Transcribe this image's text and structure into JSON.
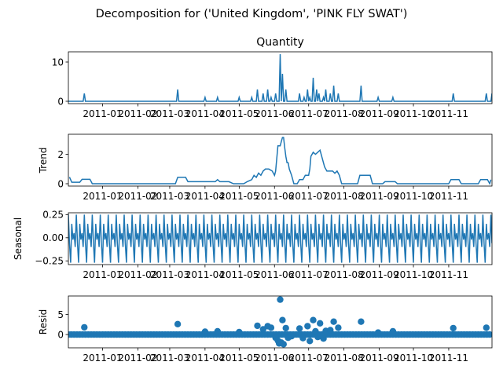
{
  "figure": {
    "suptitle": "Decomposition for ('United Kingdom', 'PINK FLY SWAT')",
    "date_ticks": [
      "2011-01",
      "2011-02",
      "2011-03",
      "2011-04",
      "2011-05",
      "2011-06",
      "2011-07",
      "2011-08",
      "2011-09",
      "2011-10",
      "2011-11"
    ]
  },
  "colors": {
    "series": "#1f77b4",
    "axes": "#000000"
  },
  "chart_data": [
    {
      "type": "line",
      "title": "Quantity",
      "ylabel": "",
      "xlim": [
        "2010-12-02",
        "2011-12-09"
      ],
      "ylim": [
        -0.6,
        12.6
      ],
      "yticks": [
        0,
        10
      ],
      "x_ticks": [
        "2011-01",
        "2011-02",
        "2011-03",
        "2011-04",
        "2011-05",
        "2011-06",
        "2011-07",
        "2011-08",
        "2011-09",
        "2011-10",
        "2011-11"
      ],
      "baseline": 0,
      "points": [
        [
          "2010-12-16",
          2
        ],
        [
          "2011-03-08",
          3
        ],
        [
          "2011-04-01",
          1
        ],
        [
          "2011-04-12",
          1
        ],
        [
          "2011-05-01",
          1
        ],
        [
          "2011-05-12",
          1
        ],
        [
          "2011-05-17",
          3
        ],
        [
          "2011-05-22",
          2
        ],
        [
          "2011-05-26",
          3
        ],
        [
          "2011-05-29",
          1
        ],
        [
          "2011-06-02",
          2
        ],
        [
          "2011-06-06",
          12
        ],
        [
          "2011-06-08",
          7
        ],
        [
          "2011-06-11",
          3
        ],
        [
          "2011-06-23",
          2
        ],
        [
          "2011-06-27",
          1
        ],
        [
          "2011-06-30",
          3
        ],
        [
          "2011-07-02",
          1
        ],
        [
          "2011-07-05",
          6
        ],
        [
          "2011-07-08",
          3
        ],
        [
          "2011-07-10",
          2
        ],
        [
          "2011-07-14",
          1
        ],
        [
          "2011-07-16",
          3
        ],
        [
          "2011-07-20",
          2
        ],
        [
          "2011-07-23",
          4
        ],
        [
          "2011-07-27",
          2
        ],
        [
          "2011-08-16",
          4
        ],
        [
          "2011-08-31",
          1
        ],
        [
          "2011-09-13",
          1
        ],
        [
          "2011-11-05",
          2
        ],
        [
          "2011-12-04",
          2
        ],
        [
          "2011-12-09",
          2
        ]
      ]
    },
    {
      "type": "line",
      "title": "",
      "ylabel": "Trend",
      "xlim": [
        "2010-12-02",
        "2011-12-09"
      ],
      "ylim": [
        -0.16,
        3.36
      ],
      "yticks": [
        0,
        2
      ],
      "x_ticks": [
        "2011-01",
        "2011-02",
        "2011-03",
        "2011-04",
        "2011-05",
        "2011-06",
        "2011-07",
        "2011-08",
        "2011-09",
        "2011-10",
        "2011-11"
      ],
      "points": [
        [
          "2010-12-03",
          0.45
        ],
        [
          "2010-12-05",
          0.1
        ],
        [
          "2010-12-12",
          0.1
        ],
        [
          "2010-12-14",
          0.3
        ],
        [
          "2010-12-21",
          0.3
        ],
        [
          "2010-12-23",
          0.0
        ],
        [
          "2011-03-06",
          0.0
        ],
        [
          "2011-03-08",
          0.43
        ],
        [
          "2011-03-15",
          0.43
        ],
        [
          "2011-03-17",
          0.14
        ],
        [
          "2011-03-31",
          0.14
        ],
        [
          "2011-04-02",
          0.14
        ],
        [
          "2011-04-10",
          0.14
        ],
        [
          "2011-04-12",
          0.28
        ],
        [
          "2011-04-14",
          0.14
        ],
        [
          "2011-04-22",
          0.14
        ],
        [
          "2011-04-26",
          0.0
        ],
        [
          "2011-05-05",
          0.0
        ],
        [
          "2011-05-08",
          0.14
        ],
        [
          "2011-05-12",
          0.28
        ],
        [
          "2011-05-14",
          0.57
        ],
        [
          "2011-05-16",
          0.43
        ],
        [
          "2011-05-18",
          0.72
        ],
        [
          "2011-05-20",
          0.57
        ],
        [
          "2011-05-22",
          0.86
        ],
        [
          "2011-05-24",
          1.0
        ],
        [
          "2011-05-27",
          1.0
        ],
        [
          "2011-05-30",
          0.86
        ],
        [
          "2011-06-01",
          0.57
        ],
        [
          "2011-06-02",
          0.86
        ],
        [
          "2011-06-04",
          2.57
        ],
        [
          "2011-06-06",
          2.57
        ],
        [
          "2011-06-07",
          2.86
        ],
        [
          "2011-06-08",
          3.14
        ],
        [
          "2011-06-09",
          3.14
        ],
        [
          "2011-06-10",
          2.43
        ],
        [
          "2011-06-11",
          1.86
        ],
        [
          "2011-06-12",
          1.43
        ],
        [
          "2011-06-13",
          1.43
        ],
        [
          "2011-06-14",
          1.0
        ],
        [
          "2011-06-16",
          0.57
        ],
        [
          "2011-06-18",
          0.0
        ],
        [
          "2011-06-21",
          0.0
        ],
        [
          "2011-06-23",
          0.28
        ],
        [
          "2011-06-26",
          0.28
        ],
        [
          "2011-06-28",
          0.57
        ],
        [
          "2011-07-01",
          0.57
        ],
        [
          "2011-07-02",
          1.0
        ],
        [
          "2011-07-03",
          1.86
        ],
        [
          "2011-07-05",
          2.14
        ],
        [
          "2011-07-07",
          2.0
        ],
        [
          "2011-07-09",
          2.14
        ],
        [
          "2011-07-11",
          2.28
        ],
        [
          "2011-07-13",
          1.71
        ],
        [
          "2011-07-15",
          1.14
        ],
        [
          "2011-07-17",
          0.86
        ],
        [
          "2011-07-19",
          0.86
        ],
        [
          "2011-07-22",
          0.86
        ],
        [
          "2011-07-24",
          0.71
        ],
        [
          "2011-07-26",
          0.86
        ],
        [
          "2011-07-28",
          0.57
        ],
        [
          "2011-07-30",
          0.0
        ],
        [
          "2011-08-13",
          0.0
        ],
        [
          "2011-08-15",
          0.57
        ],
        [
          "2011-08-24",
          0.57
        ],
        [
          "2011-08-26",
          0.0
        ],
        [
          "2011-09-04",
          0.0
        ],
        [
          "2011-09-06",
          0.14
        ],
        [
          "2011-09-15",
          0.14
        ],
        [
          "2011-09-17",
          0.0
        ],
        [
          "2011-11-01",
          0.0
        ],
        [
          "2011-11-03",
          0.28
        ],
        [
          "2011-11-10",
          0.28
        ],
        [
          "2011-11-12",
          0.0
        ],
        [
          "2011-11-27",
          0.0
        ],
        [
          "2011-11-29",
          0.28
        ],
        [
          "2011-12-05",
          0.28
        ],
        [
          "2011-12-07",
          0.0
        ],
        [
          "2011-12-08",
          0.28
        ]
      ]
    },
    {
      "type": "line",
      "title": "",
      "ylabel": "Seasonal",
      "xlim": [
        "2010-12-02",
        "2011-12-09"
      ],
      "ylim": [
        -0.29,
        0.27
      ],
      "yticks": [
        -0.25,
        0.0,
        0.25
      ],
      "ytick_labels": [
        "−0.25",
        "0.00",
        "0.25"
      ],
      "x_ticks": [
        "2011-01",
        "2011-02",
        "2011-03",
        "2011-04",
        "2011-05",
        "2011-06",
        "2011-07",
        "2011-08",
        "2011-09",
        "2011-10",
        "2011-11"
      ],
      "period_days": 7,
      "start": "2010-12-02",
      "end": "2011-12-09",
      "pattern": [
        0.25,
        -0.06,
        -0.27,
        0.15,
        -0.02,
        0.05,
        -0.1
      ]
    },
    {
      "type": "scatter",
      "title": "",
      "ylabel": "Resid",
      "xlim": [
        "2010-12-02",
        "2011-12-09"
      ],
      "ylim": [
        -3.3,
        9.6
      ],
      "yticks": [
        0,
        5
      ],
      "x_ticks": [
        "2011-01",
        "2011-02",
        "2011-03",
        "2011-04",
        "2011-05",
        "2011-06",
        "2011-07",
        "2011-08",
        "2011-09",
        "2011-10",
        "2011-11"
      ],
      "sampling_days": 2.5,
      "default_value": 0.0,
      "zero_line": true,
      "points": [
        [
          "2010-12-16",
          1.8
        ],
        [
          "2011-03-08",
          2.6
        ],
        [
          "2011-04-01",
          0.7
        ],
        [
          "2011-04-12",
          0.8
        ],
        [
          "2011-05-01",
          0.6
        ],
        [
          "2011-05-17",
          2.2
        ],
        [
          "2011-05-22",
          1.3
        ],
        [
          "2011-05-26",
          2.1
        ],
        [
          "2011-05-29",
          1.7
        ],
        [
          "2011-06-02",
          -0.8
        ],
        [
          "2011-06-04",
          -1.5
        ],
        [
          "2011-06-05",
          -2.2
        ],
        [
          "2011-06-06",
          8.7
        ],
        [
          "2011-06-07",
          -2.0
        ],
        [
          "2011-06-08",
          3.6
        ],
        [
          "2011-06-09",
          -2.4
        ],
        [
          "2011-06-11",
          1.6
        ],
        [
          "2011-06-13",
          -0.8
        ],
        [
          "2011-06-16",
          -0.4
        ],
        [
          "2011-06-23",
          1.5
        ],
        [
          "2011-06-26",
          -0.9
        ],
        [
          "2011-06-30",
          2.1
        ],
        [
          "2011-07-02",
          -1.6
        ],
        [
          "2011-07-05",
          3.6
        ],
        [
          "2011-07-07",
          0.8
        ],
        [
          "2011-07-09",
          -0.6
        ],
        [
          "2011-07-11",
          2.8
        ],
        [
          "2011-07-14",
          -1.0
        ],
        [
          "2011-07-16",
          0.9
        ],
        [
          "2011-07-20",
          1.1
        ],
        [
          "2011-07-23",
          3.2
        ],
        [
          "2011-07-27",
          1.7
        ],
        [
          "2011-08-16",
          3.2
        ],
        [
          "2011-08-31",
          0.5
        ],
        [
          "2011-09-13",
          0.8
        ],
        [
          "2011-11-05",
          1.6
        ],
        [
          "2011-12-04",
          1.7
        ]
      ]
    }
  ]
}
